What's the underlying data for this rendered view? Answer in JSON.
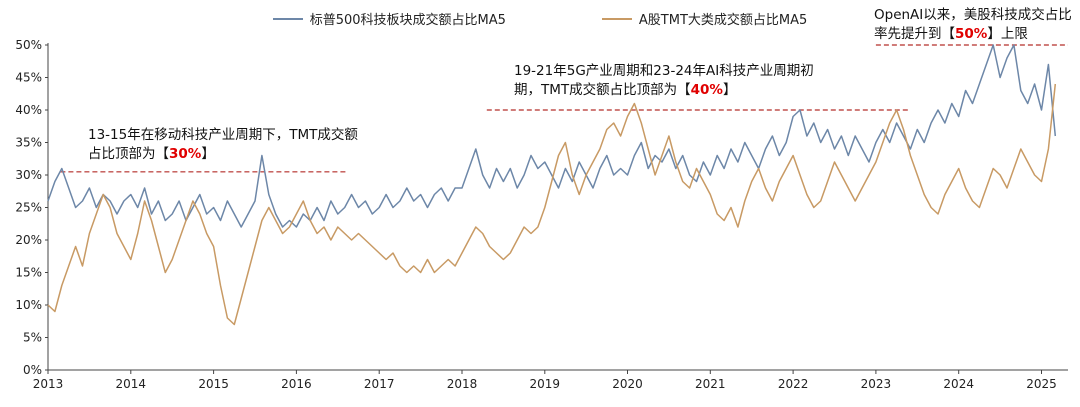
{
  "legend": {
    "items": [
      {
        "label": "标普500科技板块成交额占比MA5",
        "color": "#6d87a8"
      },
      {
        "label": "A股TMT大类成交额占比MA5",
        "color": "#c89a64"
      }
    ]
  },
  "annotation_value_color": "#e00000",
  "annotations": [
    {
      "pre": "13-15年在移动科技产业周期下，TMT成交额占比顶部为【",
      "value": "30%",
      "post": "】"
    },
    {
      "pre": "19-21年5G产业周期和23-24年AI科技产业周期初期，TMT成交额占比顶部为【",
      "value": "40%",
      "post": "】"
    },
    {
      "pre": "OpenAI以来，美股科技成交占比率先提升到【",
      "value": "50%",
      "post": "】上限"
    }
  ],
  "chart_data": {
    "type": "line",
    "title": "",
    "xlabel": "",
    "ylabel": "",
    "grid": false,
    "legend_position": "top-center",
    "xlim": [
      2013,
      2025.32
    ],
    "ylim": [
      0,
      50
    ],
    "x_ticks": [
      2013,
      2014,
      2015,
      2016,
      2017,
      2018,
      2019,
      2020,
      2021,
      2022,
      2023,
      2024,
      2025
    ],
    "y_ticks": [
      0,
      5,
      10,
      15,
      20,
      25,
      30,
      35,
      40,
      45,
      50
    ],
    "y_tick_labels": [
      "0%",
      "5%",
      "10%",
      "15%",
      "20%",
      "25%",
      "30%",
      "35%",
      "40%",
      "45%",
      "50%"
    ],
    "ref_lines": [
      {
        "y": 30.5,
        "x1": 2013.15,
        "x2": 2016.6,
        "color": "#c0504d"
      },
      {
        "y": 40.0,
        "x1": 2018.3,
        "x2": 2023.4,
        "color": "#c0504d"
      },
      {
        "y": 50.0,
        "x1": 2023.0,
        "x2": 2025.32,
        "color": "#c0504d"
      }
    ],
    "series": [
      {
        "name": "标普500科技板块成交额占比MA5",
        "color": "#6d87a8",
        "x_start": 2013.0,
        "x_step": 0.083333,
        "values": [
          26,
          29,
          31,
          28,
          25,
          26,
          28,
          25,
          27,
          26,
          24,
          26,
          27,
          25,
          28,
          24,
          26,
          23,
          24,
          26,
          23,
          25,
          27,
          24,
          25,
          23,
          26,
          24,
          22,
          24,
          26,
          33,
          27,
          24,
          22,
          23,
          22,
          24,
          23,
          25,
          23,
          26,
          24,
          25,
          27,
          25,
          26,
          24,
          25,
          27,
          25,
          26,
          28,
          26,
          27,
          25,
          27,
          28,
          26,
          28,
          28,
          31,
          34,
          30,
          28,
          31,
          29,
          31,
          28,
          30,
          33,
          31,
          32,
          30,
          28,
          31,
          29,
          32,
          30,
          28,
          31,
          33,
          30,
          31,
          30,
          33,
          35,
          31,
          33,
          32,
          34,
          31,
          33,
          30,
          29,
          32,
          30,
          33,
          31,
          34,
          32,
          35,
          33,
          31,
          34,
          36,
          33,
          35,
          39,
          40,
          36,
          38,
          35,
          37,
          34,
          36,
          33,
          36,
          34,
          32,
          35,
          37,
          35,
          38,
          36,
          34,
          37,
          35,
          38,
          40,
          38,
          41,
          39,
          43,
          41,
          44,
          47,
          50,
          45,
          48,
          50,
          43,
          41,
          44,
          40,
          47,
          36
        ]
      },
      {
        "name": "A股TMT大类成交额占比MA5",
        "color": "#c89a64",
        "x_start": 2013.0,
        "x_step": 0.083333,
        "values": [
          10,
          9,
          13,
          16,
          19,
          16,
          21,
          24,
          27,
          25,
          21,
          19,
          17,
          21,
          26,
          23,
          19,
          15,
          17,
          20,
          23,
          26,
          24,
          21,
          19,
          13,
          8,
          7,
          11,
          15,
          19,
          23,
          25,
          23,
          21,
          22,
          24,
          26,
          23,
          21,
          22,
          20,
          22,
          21,
          20,
          21,
          20,
          19,
          18,
          17,
          18,
          16,
          15,
          16,
          15,
          17,
          15,
          16,
          17,
          16,
          18,
          20,
          22,
          21,
          19,
          18,
          17,
          18,
          20,
          22,
          21,
          22,
          25,
          29,
          33,
          35,
          30,
          27,
          30,
          32,
          34,
          37,
          38,
          36,
          39,
          41,
          38,
          34,
          30,
          33,
          36,
          32,
          29,
          28,
          31,
          29,
          27,
          24,
          23,
          25,
          22,
          26,
          29,
          31,
          28,
          26,
          29,
          31,
          33,
          30,
          27,
          25,
          26,
          29,
          32,
          30,
          28,
          26,
          28,
          30,
          32,
          35,
          38,
          40,
          37,
          33,
          30,
          27,
          25,
          24,
          27,
          29,
          31,
          28,
          26,
          25,
          28,
          31,
          30,
          28,
          31,
          34,
          32,
          30,
          29,
          34,
          44
        ]
      }
    ]
  }
}
